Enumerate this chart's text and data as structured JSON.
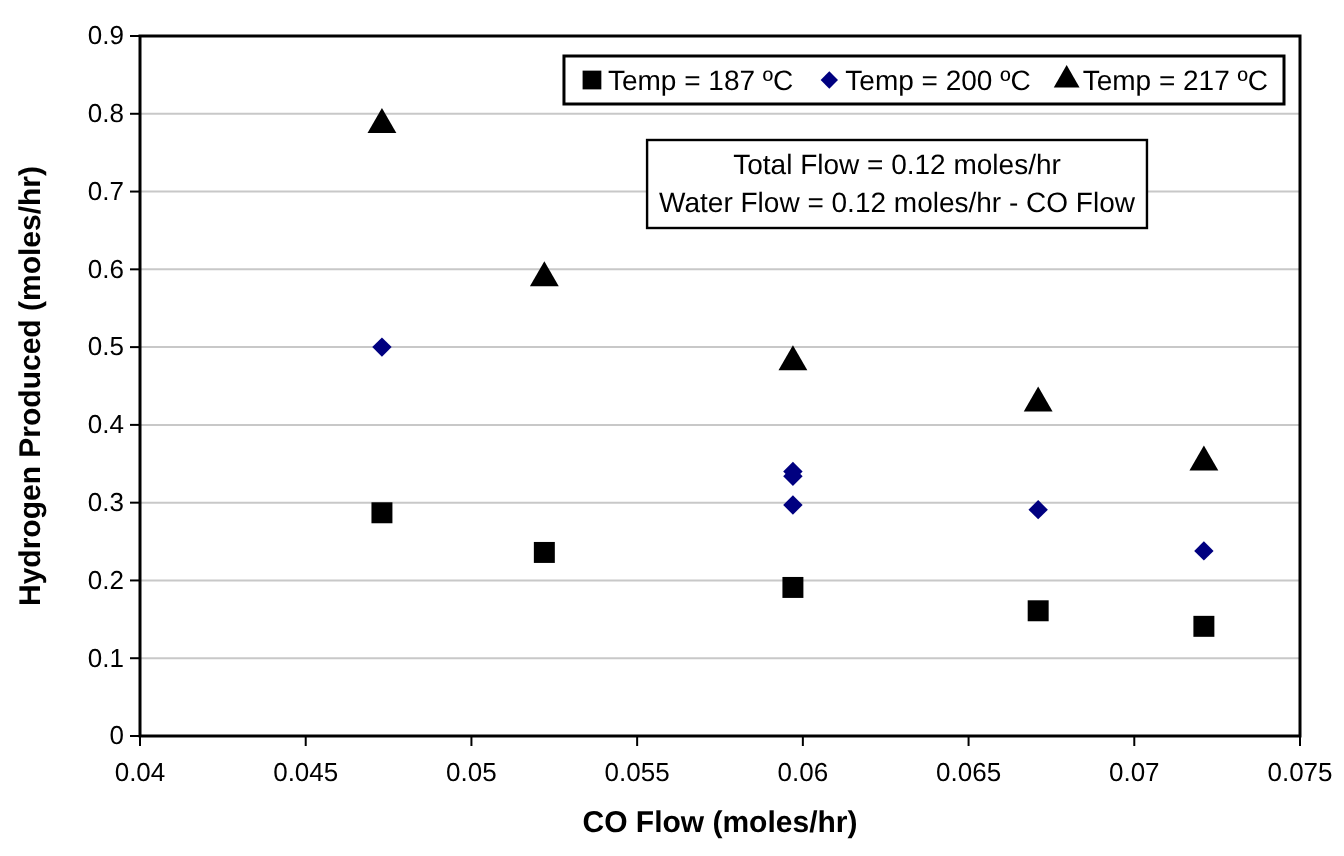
{
  "chart_data": {
    "type": "scatter",
    "xlabel": "CO Flow (moles/hr)",
    "ylabel": "Hydrogen Produced (moles/hr)",
    "xlim": [
      0.04,
      0.075
    ],
    "xticks": [
      0.04,
      0.045,
      0.05,
      0.055,
      0.06,
      0.065,
      0.07,
      0.075
    ],
    "ylim": [
      0,
      0.9
    ],
    "yticks": [
      0,
      0.1,
      0.2,
      0.3,
      0.4,
      0.5,
      0.6,
      0.7,
      0.8,
      0.9
    ],
    "grid": "y",
    "legend": "top right",
    "annotations": [
      "Total Flow = 0.12 moles/hr",
      "Water Flow = 0.12 moles/hr - CO Flow"
    ],
    "series": [
      {
        "name": "Temp = 187 ºC",
        "color": "#000000",
        "marker": "square",
        "x": [
          0.0473,
          0.0522,
          0.0597,
          0.0671,
          0.0721
        ],
        "values": [
          0.287,
          0.236,
          0.191,
          0.161,
          0.141
        ]
      },
      {
        "name": "Temp = 200 ºC",
        "color": "#000080",
        "marker": "diamond",
        "x": [
          0.0473,
          0.0597,
          0.0597,
          0.0597,
          0.0671,
          0.0721
        ],
        "values": [
          0.5,
          0.34,
          0.334,
          0.297,
          0.291,
          0.238
        ]
      },
      {
        "name": "Temp = 217 ºC",
        "color": "#000000",
        "marker": "triangle",
        "x": [
          0.0473,
          0.0522,
          0.0597,
          0.0671,
          0.0721
        ],
        "values": [
          0.786,
          0.589,
          0.481,
          0.428,
          0.352
        ]
      }
    ]
  }
}
